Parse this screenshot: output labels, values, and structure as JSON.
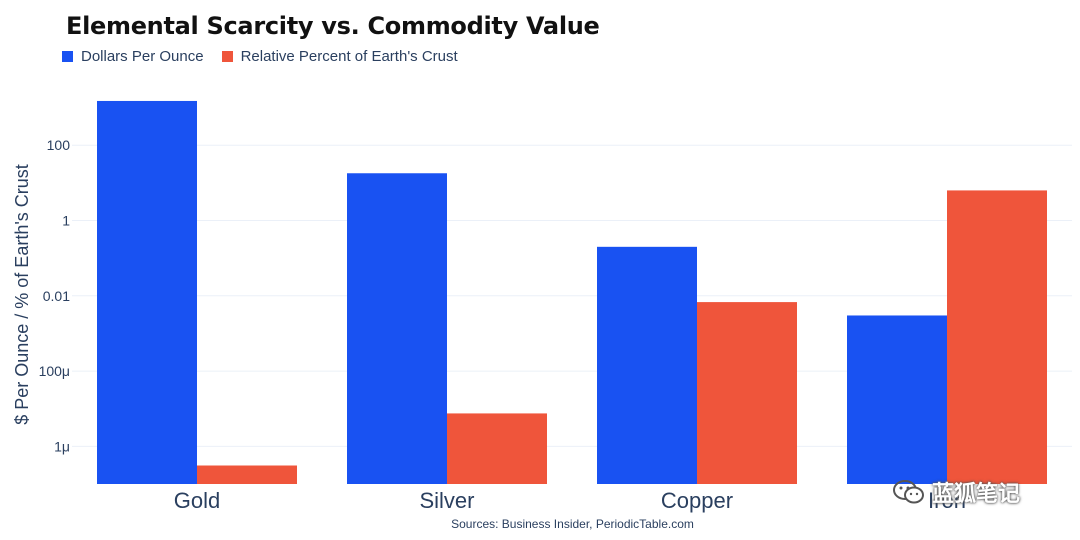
{
  "chart_data": {
    "type": "bar",
    "title": "Elemental Scarcity vs. Commodity Value",
    "xlabel": "",
    "ylabel": "$ Per Ounce / % of Earth's Crust",
    "y_scale": "log",
    "ylim_exp": [
      -7.0,
      3.6
    ],
    "grid": true,
    "legend_position": "top-left",
    "categories": [
      "Gold",
      "Silver",
      "Copper",
      "Iron"
    ],
    "series": [
      {
        "name": "Dollars Per Ounce",
        "color": "#1952f2",
        "values": [
          1500,
          18,
          0.2,
          0.003
        ]
      },
      {
        "name": "Relative Percent of Earth's Crust",
        "color": "#ef553b",
        "values": [
          3.1e-07,
          7.5e-06,
          0.0068,
          6.3
        ]
      }
    ],
    "y_ticks": [
      {
        "value": 100,
        "label": "100"
      },
      {
        "value": 1,
        "label": "1"
      },
      {
        "value": 0.01,
        "label": "0.01"
      },
      {
        "value": 0.0001,
        "label": "100μ"
      },
      {
        "value": 1e-06,
        "label": "1μ"
      }
    ],
    "source": "Sources: Business Insider, PeriodicTable.com"
  },
  "watermark": {
    "text": "蓝狐笔记"
  }
}
